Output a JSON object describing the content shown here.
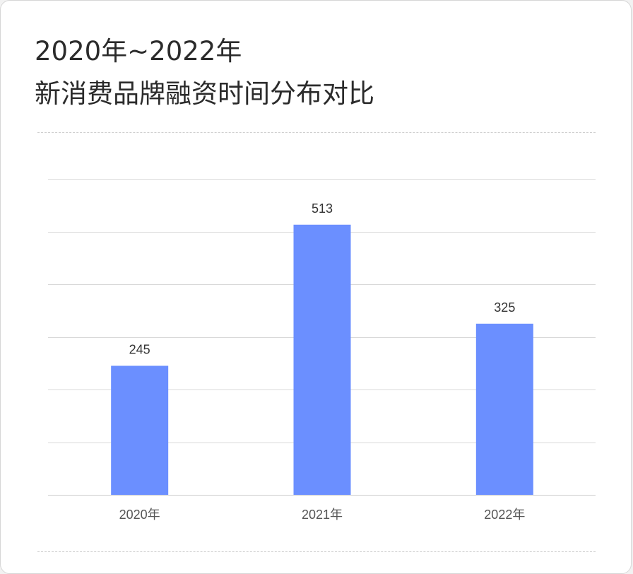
{
  "header": {
    "title_line1": "2020年~2022年",
    "title_line2": "新消费品牌融资时间分布对比"
  },
  "chart_data": {
    "type": "bar",
    "categories": [
      "2020年",
      "2021年",
      "2022年"
    ],
    "values": [
      245,
      513,
      325
    ],
    "ylim": [
      0,
      600
    ],
    "grid": true,
    "gridline_step": 100,
    "colors": {
      "bar": "#6b8fff",
      "grid": "#d9d9d9",
      "axis": "#cccccc"
    }
  }
}
